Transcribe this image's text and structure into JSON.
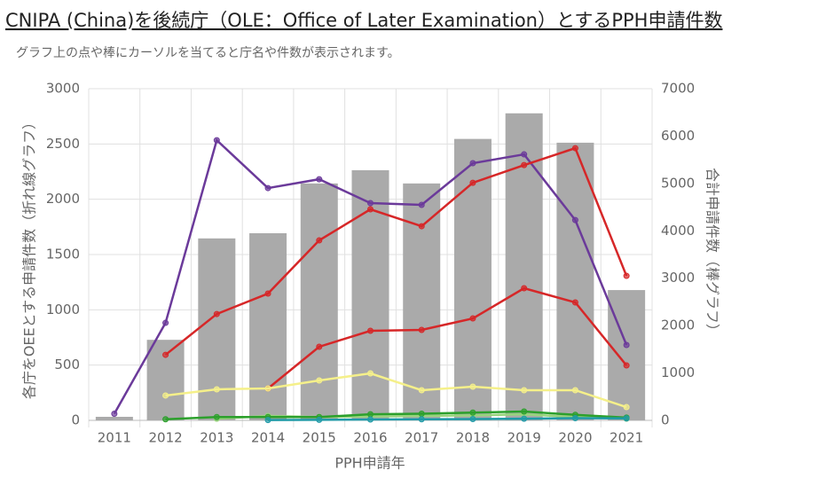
{
  "chart_data": {
    "type": "bar",
    "title": "CNIPA (China)を後続庁（OLE：Office of Later Examination）とするPPH申請件数",
    "subtitle": "グラフ上の点や棒にカーソルを当てると庁名や件数が表示されます。",
    "x_label": "PPH申請年",
    "y_label": "各庁をOEEとする申請件数（折れ線グラフ）",
    "y2_label": "合計申請件数（棒グラフ）",
    "categories": [
      "2011",
      "2012",
      "2013",
      "2014",
      "2015",
      "2016",
      "2017",
      "2018",
      "2019",
      "2020",
      "2021"
    ],
    "ylim": [
      0,
      3000
    ],
    "yticks": [
      0,
      500,
      1000,
      1500,
      2000,
      2500,
      3000
    ],
    "y2lim": [
      0,
      7000
    ],
    "y2ticks": [
      0,
      1000,
      2000,
      3000,
      4000,
      5000,
      6000,
      7000
    ],
    "grid": true,
    "series": [
      {
        "type": "bar",
        "axis": "y2",
        "color": "#aaaaaa",
        "values": [
          75,
          1700,
          3840,
          3950,
          5000,
          5280,
          5000,
          5940,
          6480,
          5860,
          2750
        ]
      },
      {
        "type": "line",
        "color": "#6b3a9a",
        "values": [
          60,
          882,
          2534,
          2101,
          2181,
          1965,
          1949,
          2326,
          2406,
          1812,
          682
        ]
      },
      {
        "type": "line",
        "color": "#d62728",
        "values": [
          null,
          593,
          962,
          1147,
          1628,
          1909,
          1756,
          2149,
          2309,
          2462,
          1307
        ]
      },
      {
        "type": "line",
        "color": "#d62728",
        "values": [
          null,
          null,
          null,
          289,
          666,
          810,
          818,
          922,
          1195,
          1067,
          497
        ]
      },
      {
        "type": "line",
        "color": "#f5f08a",
        "values": [
          null,
          225,
          281,
          289,
          361,
          425,
          273,
          305,
          273,
          273,
          120
        ]
      },
      {
        "type": "line",
        "color": "#98d47c",
        "values": [
          null,
          null,
          15,
          40,
          30,
          35,
          40,
          45,
          55,
          30,
          15
        ]
      },
      {
        "type": "line",
        "color": "#2ca02c",
        "values": [
          null,
          10,
          30,
          30,
          30,
          55,
          60,
          70,
          80,
          50,
          25
        ]
      },
      {
        "type": "line",
        "color": "#1f9aa8",
        "values": [
          null,
          null,
          null,
          3,
          5,
          8,
          10,
          12,
          15,
          20,
          18
        ]
      }
    ]
  }
}
